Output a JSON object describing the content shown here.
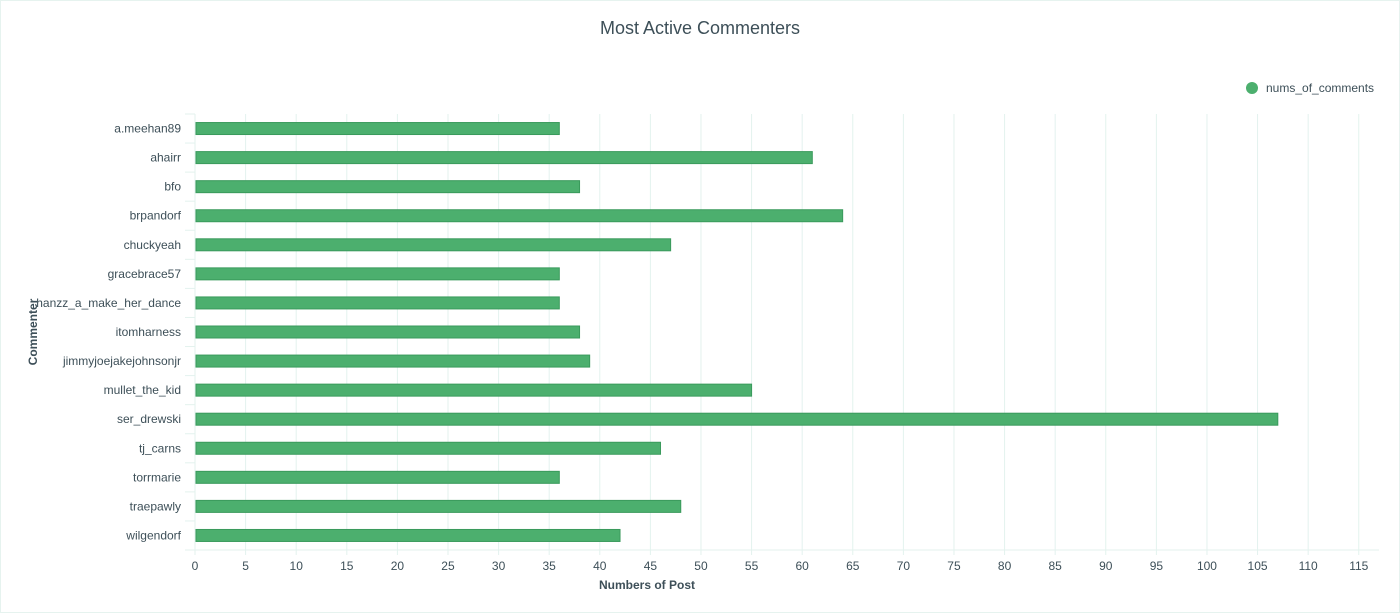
{
  "chart_data": {
    "type": "bar",
    "orientation": "horizontal",
    "title": "Most Active Commenters",
    "xlabel": "Numbers of Post",
    "ylabel": "Commenter",
    "xlim": [
      0,
      117
    ],
    "xticks": [
      0,
      5,
      10,
      15,
      20,
      25,
      30,
      35,
      40,
      45,
      50,
      55,
      60,
      65,
      70,
      75,
      80,
      85,
      90,
      95,
      100,
      105,
      110,
      115
    ],
    "categories": [
      "a.meehan89",
      "ahairr",
      "bfo",
      "brpandorf",
      "chuckyeah",
      "gracebrace57",
      "hanzz_a_make_her_dance",
      "itomharness",
      "jimmyjoejakejohnsonjr",
      "mullet_the_kid",
      "ser_drewski",
      "tj_carns",
      "torrmarie",
      "traepawly",
      "wilgendorf"
    ],
    "series": [
      {
        "name": "nums_of_comments",
        "color": "#4caf6e",
        "values": [
          36,
          61,
          38,
          64,
          47,
          36,
          36,
          38,
          39,
          55,
          107,
          46,
          36,
          48,
          42
        ]
      }
    ],
    "grid": "vertical",
    "legend_position": "top-right"
  },
  "colors": {
    "bar": "#4caf6e",
    "bar_edge": "#3a9a5c",
    "grid": "#e3f2ee",
    "text": "#3d4f58"
  }
}
